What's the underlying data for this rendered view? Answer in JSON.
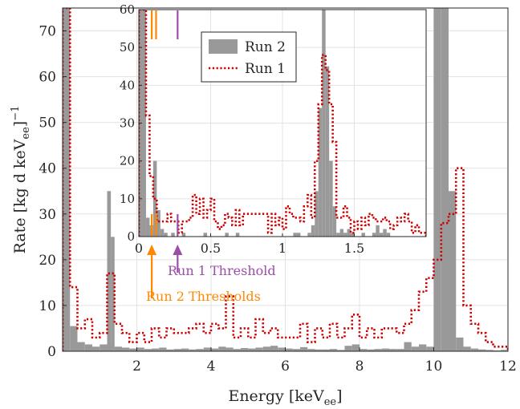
{
  "chart_data": {
    "type": "histogram-step-overlay",
    "main": {
      "xlabel": "Energy [keV",
      "xlabel_sub": "ee",
      "xlabel_close": "]",
      "ylabel": "Rate [kg d keV",
      "ylabel_sub": "ee",
      "ylabel_close": "]",
      "ylabel_sup": "−1",
      "xlim": [
        0,
        12
      ],
      "ylim": [
        0,
        75
      ],
      "xticks": [
        2,
        4,
        6,
        8,
        10,
        12
      ],
      "xtick_labels": [
        "2",
        "4",
        "6",
        "8",
        "10",
        "12"
      ],
      "yticks": [
        0,
        10,
        20,
        30,
        40,
        50,
        60,
        70
      ],
      "ytick_labels": [
        "0",
        "10",
        "20",
        "30",
        "40",
        "50",
        "60",
        "70"
      ],
      "grid": true,
      "bin_width": 0.2,
      "series": [
        {
          "name": "Run 2",
          "style": "filled-bar",
          "color": "#999999",
          "values": [
            75,
            5.5,
            2,
            1.5,
            1,
            1.5,
            1.2,
            1,
            0.8,
            0.6,
            0.8,
            0.5,
            0.6,
            0.8,
            0.4,
            0.5,
            0.6,
            0.4,
            0.5,
            0.8,
            0.6,
            1,
            0.8,
            0.5,
            0.7,
            0.6,
            0.8,
            1,
            1.2,
            0.8,
            0.6,
            0.5,
            0.9,
            0.5,
            0.4,
            0.4,
            0.5,
            0.3,
            1.2,
            1.5,
            0.5,
            0.4,
            0.5,
            0.6,
            0.5,
            0.5,
            2,
            1,
            1.5,
            1,
            75,
            75,
            35,
            3,
            1,
            0.6,
            0.4,
            0.3,
            0.2,
            0.3
          ],
          "extra_bars": [
            {
              "x": 1.2,
              "width": 0.1,
              "value": 35
            },
            {
              "x": 1.3,
              "width": 0.1,
              "value": 25
            }
          ]
        },
        {
          "name": "Run 1",
          "style": "dotted-step",
          "color": "#cc0000",
          "values": [
            75,
            14,
            5,
            7,
            3,
            4,
            17,
            6,
            4,
            2,
            4,
            2,
            5,
            3,
            5,
            4,
            4,
            5,
            6,
            4,
            6,
            5,
            12,
            3,
            5,
            3,
            7,
            4,
            5,
            3,
            3,
            3,
            6,
            2,
            5,
            3,
            6,
            3,
            5,
            8,
            3,
            5,
            3,
            5,
            5,
            4,
            6,
            9,
            13,
            16,
            20,
            28,
            30,
            40,
            10,
            6,
            4,
            2,
            1,
            1
          ]
        }
      ]
    },
    "inset": {
      "xlim": [
        0,
        2
      ],
      "ylim": [
        0,
        60
      ],
      "xticks": [
        0,
        0.5,
        1,
        1.5
      ],
      "xtick_labels": [
        "0",
        "0.5",
        "1",
        "1.5"
      ],
      "yticks": [
        0,
        10,
        20,
        30,
        40,
        50,
        60
      ],
      "ytick_labels": [
        "0",
        "10",
        "20",
        "30",
        "40",
        "50",
        "60"
      ],
      "grid": true,
      "bin_width": 0.025,
      "run2_values": [
        60,
        60,
        5,
        3,
        20,
        7,
        2,
        1,
        0,
        1,
        0,
        0,
        1,
        0,
        0,
        0,
        0,
        0,
        1,
        0,
        0,
        0,
        0,
        0,
        1,
        0,
        0,
        1,
        0,
        0,
        0,
        0,
        0,
        0,
        0,
        0,
        0,
        0,
        0,
        0,
        0,
        0,
        0,
        1,
        1,
        0,
        0,
        1,
        3,
        12,
        34,
        60,
        45,
        20,
        8,
        1,
        2,
        1,
        2,
        1,
        0,
        0,
        1,
        0,
        0,
        1,
        3,
        1,
        2,
        1,
        0,
        0,
        0,
        0,
        0,
        0,
        0,
        0,
        0,
        0
      ],
      "run1_values": [
        60,
        60,
        32,
        16,
        10,
        4,
        4,
        4,
        6,
        4,
        4,
        1,
        4,
        4,
        5,
        11,
        6,
        10,
        5,
        7,
        10,
        4,
        2,
        3,
        6,
        5,
        3,
        7,
        3,
        6,
        6,
        6,
        6,
        6,
        6,
        6,
        1,
        6,
        3,
        5,
        2,
        8,
        6,
        5,
        5,
        4,
        8,
        11,
        5,
        20,
        35,
        48,
        44,
        35,
        25,
        5,
        5,
        8,
        5,
        1,
        4,
        2,
        5,
        3,
        6,
        5,
        4,
        4,
        5,
        4,
        2,
        3,
        5,
        4,
        6,
        4,
        1,
        3,
        1,
        1
      ],
      "thresholds": [
        {
          "label": "Run 2 Thresholds",
          "color": "#ff8800",
          "lines": [
            0.09,
            0.12
          ],
          "arrow_x": 0.09
        },
        {
          "label": "Run 1 Threshold",
          "color": "#9b4ea8",
          "lines": [
            0.27
          ],
          "arrow_x": 0.27
        }
      ]
    },
    "legend": {
      "placement": "inset-top-center",
      "entries": [
        {
          "label": "Run 2",
          "color": "#999999",
          "style": "filled"
        },
        {
          "label": "Run 1",
          "color": "#cc0000",
          "style": "dotted"
        }
      ]
    }
  }
}
